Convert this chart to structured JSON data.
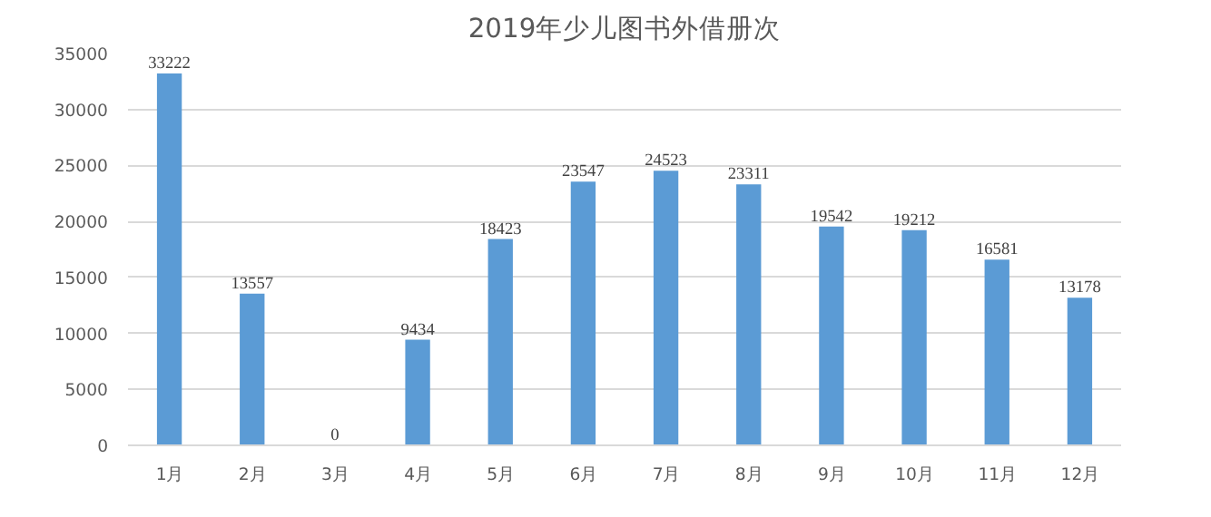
{
  "chart_data": {
    "type": "bar",
    "title": "2019年少儿图书外借册次",
    "categories": [
      "1月",
      "2月",
      "3月",
      "4月",
      "5月",
      "6月",
      "7月",
      "8月",
      "9月",
      "10月",
      "11月",
      "12月"
    ],
    "values": [
      33222,
      13557,
      0,
      9434,
      18423,
      23547,
      24523,
      23311,
      19542,
      19212,
      16581,
      13178
    ],
    "color": "#5b9bd5",
    "ylim": [
      0,
      35000
    ],
    "yticks": [
      0,
      5000,
      10000,
      15000,
      20000,
      25000,
      30000,
      35000
    ],
    "grid": "y",
    "data_labels": true
  }
}
